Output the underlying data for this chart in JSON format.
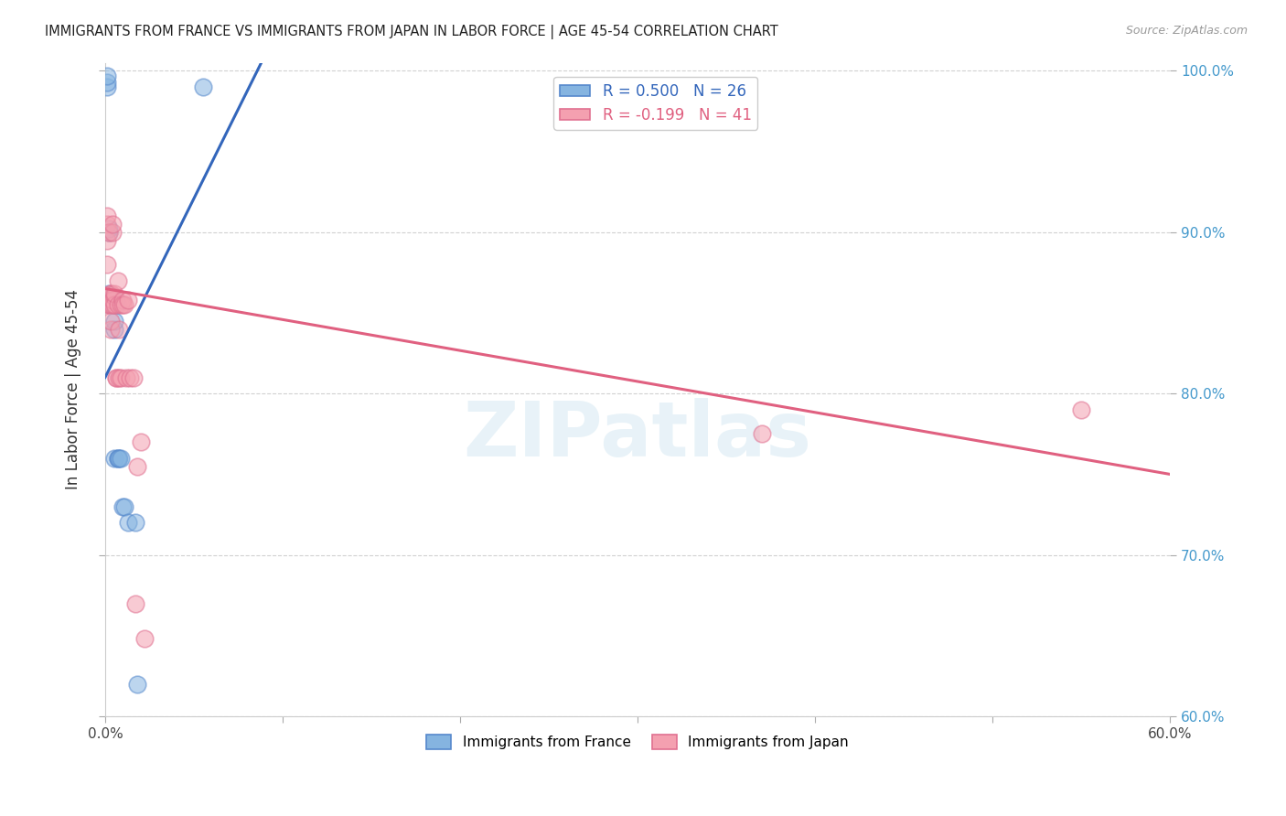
{
  "title": "IMMIGRANTS FROM FRANCE VS IMMIGRANTS FROM JAPAN IN LABOR FORCE | AGE 45-54 CORRELATION CHART",
  "source": "Source: ZipAtlas.com",
  "ylabel": "In Labor Force | Age 45-54",
  "xlim": [
    0.0,
    0.6
  ],
  "ylim": [
    0.6,
    1.005
  ],
  "xtick_pos": [
    0.0,
    0.1,
    0.2,
    0.3,
    0.4,
    0.5,
    0.6
  ],
  "xtick_labels": [
    "0.0%",
    "",
    "",
    "",
    "",
    "",
    "60.0%"
  ],
  "yticks": [
    0.6,
    0.7,
    0.8,
    0.9,
    1.0
  ],
  "ytick_labels_right": [
    "60.0%",
    "70.0%",
    "80.0%",
    "90.0%",
    "100.0%"
  ],
  "france_R": 0.5,
  "france_N": 26,
  "japan_R": -0.199,
  "japan_N": 41,
  "france_color": "#85b4e0",
  "japan_color": "#f4a0b0",
  "france_edge_color": "#5588cc",
  "japan_edge_color": "#e07090",
  "france_trend_color": "#3366BB",
  "japan_trend_color": "#e06080",
  "watermark": "ZIPatlas",
  "france_x": [
    0.001,
    0.001,
    0.001,
    0.002,
    0.002,
    0.002,
    0.003,
    0.003,
    0.003,
    0.004,
    0.004,
    0.005,
    0.005,
    0.005,
    0.006,
    0.006,
    0.007,
    0.007,
    0.008,
    0.009,
    0.01,
    0.011,
    0.013,
    0.017,
    0.018,
    0.055
  ],
  "france_y": [
    0.99,
    0.993,
    0.997,
    0.9,
    0.902,
    0.862,
    0.86,
    0.858,
    0.855,
    0.855,
    0.858,
    0.76,
    0.84,
    0.845,
    0.855,
    0.858,
    0.76,
    0.76,
    0.76,
    0.76,
    0.73,
    0.73,
    0.72,
    0.72,
    0.62,
    0.99
  ],
  "japan_x": [
    0.001,
    0.001,
    0.001,
    0.001,
    0.002,
    0.002,
    0.002,
    0.002,
    0.003,
    0.003,
    0.003,
    0.003,
    0.003,
    0.004,
    0.004,
    0.004,
    0.004,
    0.005,
    0.005,
    0.005,
    0.006,
    0.006,
    0.007,
    0.007,
    0.008,
    0.008,
    0.009,
    0.009,
    0.01,
    0.01,
    0.011,
    0.012,
    0.013,
    0.014,
    0.016,
    0.017,
    0.018,
    0.02,
    0.022,
    0.37,
    0.55
  ],
  "japan_y": [
    0.905,
    0.91,
    0.895,
    0.88,
    0.9,
    0.855,
    0.86,
    0.855,
    0.862,
    0.855,
    0.862,
    0.84,
    0.845,
    0.9,
    0.905,
    0.855,
    0.858,
    0.86,
    0.855,
    0.862,
    0.81,
    0.81,
    0.855,
    0.87,
    0.84,
    0.81,
    0.81,
    0.855,
    0.858,
    0.855,
    0.855,
    0.81,
    0.858,
    0.81,
    0.81,
    0.67,
    0.755,
    0.77,
    0.648,
    0.775,
    0.79
  ],
  "france_trend_x": [
    0.0,
    0.088
  ],
  "france_trend_y": [
    0.81,
    1.005
  ],
  "japan_trend_x": [
    0.0,
    0.6
  ],
  "japan_trend_y": [
    0.865,
    0.75
  ]
}
